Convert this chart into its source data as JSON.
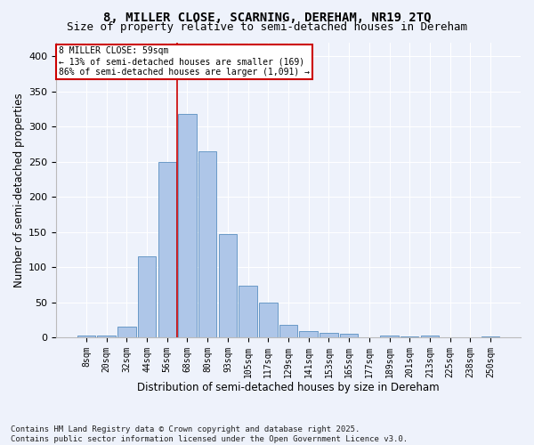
{
  "title_line1": "8, MILLER CLOSE, SCARNING, DEREHAM, NR19 2TQ",
  "title_line2": "Size of property relative to semi-detached houses in Dereham",
  "xlabel": "Distribution of semi-detached houses by size in Dereham",
  "ylabel": "Number of semi-detached properties",
  "footer_line1": "Contains HM Land Registry data © Crown copyright and database right 2025.",
  "footer_line2": "Contains public sector information licensed under the Open Government Licence v3.0.",
  "bar_labels": [
    "8sqm",
    "20sqm",
    "32sqm",
    "44sqm",
    "56sqm",
    "68sqm",
    "80sqm",
    "93sqm",
    "105sqm",
    "117sqm",
    "129sqm",
    "141sqm",
    "153sqm",
    "165sqm",
    "177sqm",
    "189sqm",
    "201sqm",
    "213sqm",
    "225sqm",
    "238sqm",
    "250sqm"
  ],
  "bar_values": [
    2,
    2,
    15,
    115,
    250,
    318,
    265,
    147,
    73,
    50,
    18,
    9,
    6,
    5,
    0,
    2,
    1,
    3,
    0,
    0,
    1
  ],
  "bar_color": "#aec6e8",
  "bar_edge_color": "#5a8fc0",
  "vline_x": 4.5,
  "vline_color": "#cc0000",
  "annotation_text": "8 MILLER CLOSE: 59sqm\n← 13% of semi-detached houses are smaller (169)\n86% of semi-detached houses are larger (1,091) →",
  "annotation_box_color": "#cc0000",
  "ylim": [
    0,
    420
  ],
  "yticks": [
    0,
    50,
    100,
    150,
    200,
    250,
    300,
    350,
    400
  ],
  "background_color": "#eef2fb",
  "grid_color": "#ffffff",
  "title_fontsize": 10,
  "subtitle_fontsize": 9,
  "axis_label_fontsize": 8.5,
  "tick_fontsize": 7,
  "footer_fontsize": 6.5,
  "annotation_fontsize": 7
}
